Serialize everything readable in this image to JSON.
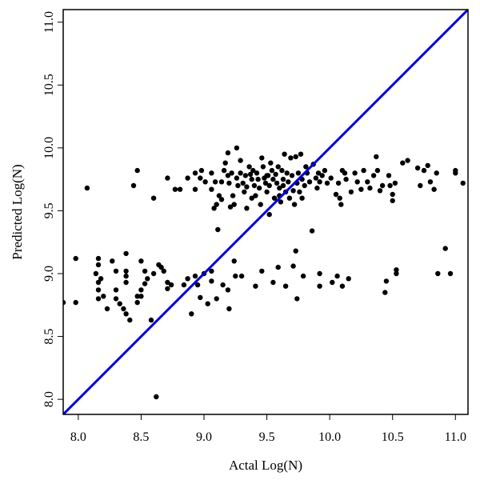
{
  "chart_data": {
    "type": "scatter",
    "title": "",
    "xlabel": "Actal Log(N)",
    "ylabel": "Predicted Log(N)",
    "xlim": [
      7.88,
      11.1
    ],
    "ylim": [
      7.88,
      11.1
    ],
    "x_ticks": [
      "8.0",
      "8.5",
      "9.0",
      "9.5",
      "10.0",
      "10.5",
      "11.0"
    ],
    "y_ticks": [
      "8.0",
      "8.5",
      "9.0",
      "9.5",
      "10.0",
      "10.5",
      "11.0"
    ],
    "grid": false,
    "legend": "none",
    "colors": {
      "points": "#000000",
      "line": "#0000dd",
      "frame": "#000000"
    },
    "reference_line": {
      "label": "",
      "from": [
        7.88,
        7.88
      ],
      "to": [
        11.1,
        11.1
      ]
    },
    "points": [
      [
        7.88,
        8.77
      ],
      [
        7.98,
        9.12
      ],
      [
        7.98,
        8.77
      ],
      [
        8.07,
        9.68
      ],
      [
        8.16,
        9.12
      ],
      [
        8.16,
        9.07
      ],
      [
        8.14,
        9.0
      ],
      [
        8.16,
        8.93
      ],
      [
        8.16,
        8.87
      ],
      [
        8.16,
        8.8
      ],
      [
        8.18,
        8.96
      ],
      [
        8.2,
        8.82
      ],
      [
        8.23,
        8.72
      ],
      [
        8.27,
        9.1
      ],
      [
        8.3,
        9.02
      ],
      [
        8.3,
        8.87
      ],
      [
        8.3,
        8.8
      ],
      [
        8.33,
        8.76
      ],
      [
        8.36,
        8.72
      ],
      [
        8.38,
        9.16
      ],
      [
        8.38,
        9.02
      ],
      [
        8.38,
        8.98
      ],
      [
        8.38,
        8.93
      ],
      [
        8.38,
        8.68
      ],
      [
        8.41,
        8.63
      ],
      [
        8.44,
        9.7
      ],
      [
        8.47,
        9.82
      ],
      [
        8.47,
        8.82
      ],
      [
        8.47,
        8.77
      ],
      [
        8.5,
        9.1
      ],
      [
        8.5,
        8.87
      ],
      [
        8.5,
        8.82
      ],
      [
        8.53,
        9.02
      ],
      [
        8.53,
        8.92
      ],
      [
        8.55,
        8.96
      ],
      [
        8.58,
        8.63
      ],
      [
        8.6,
        9.6
      ],
      [
        8.6,
        9.0
      ],
      [
        8.62,
        8.02
      ],
      [
        8.64,
        9.07
      ],
      [
        8.66,
        9.05
      ],
      [
        8.68,
        9.02
      ],
      [
        8.71,
        9.76
      ],
      [
        8.71,
        8.93
      ],
      [
        8.71,
        8.88
      ],
      [
        8.74,
        8.91
      ],
      [
        8.77,
        9.67
      ],
      [
        8.81,
        9.67
      ],
      [
        8.84,
        8.91
      ],
      [
        8.87,
        9.76
      ],
      [
        8.87,
        8.96
      ],
      [
        8.9,
        8.68
      ],
      [
        8.93,
        9.8
      ],
      [
        8.93,
        9.67
      ],
      [
        8.93,
        8.98
      ],
      [
        8.95,
        8.91
      ],
      [
        8.97,
        9.76
      ],
      [
        8.97,
        8.81
      ],
      [
        8.98,
        9.82
      ],
      [
        9.0,
        9.0
      ],
      [
        9.01,
        9.73
      ],
      [
        9.03,
        8.76
      ],
      [
        9.06,
        9.8
      ],
      [
        9.06,
        9.67
      ],
      [
        9.06,
        9.02
      ],
      [
        9.06,
        8.94
      ],
      [
        9.08,
        9.52
      ],
      [
        9.09,
        9.73
      ],
      [
        9.1,
        9.55
      ],
      [
        9.1,
        8.8
      ],
      [
        9.11,
        9.35
      ],
      [
        9.12,
        9.62
      ],
      [
        9.14,
        9.73
      ],
      [
        9.14,
        9.59
      ],
      [
        9.15,
        8.91
      ],
      [
        9.16,
        9.82
      ],
      [
        9.17,
        9.88
      ],
      [
        9.19,
        9.96
      ],
      [
        9.19,
        9.78
      ],
      [
        9.19,
        8.87
      ],
      [
        9.2,
        9.72
      ],
      [
        9.2,
        8.72
      ],
      [
        9.21,
        9.53
      ],
      [
        9.22,
        9.8
      ],
      [
        9.23,
        9.62
      ],
      [
        9.24,
        9.55
      ],
      [
        9.24,
        9.1
      ],
      [
        9.25,
        8.98
      ],
      [
        9.26,
        10.0
      ],
      [
        9.26,
        9.76
      ],
      [
        9.27,
        9.7
      ],
      [
        9.29,
        9.9
      ],
      [
        9.29,
        9.8
      ],
      [
        9.3,
        8.98
      ],
      [
        9.31,
        9.72
      ],
      [
        9.32,
        9.65
      ],
      [
        9.33,
        9.78
      ],
      [
        9.34,
        9.69
      ],
      [
        9.34,
        9.52
      ],
      [
        9.36,
        9.85
      ],
      [
        9.37,
        9.79
      ],
      [
        9.38,
        9.75
      ],
      [
        9.38,
        9.6
      ],
      [
        9.39,
        9.82
      ],
      [
        9.4,
        9.7
      ],
      [
        9.41,
        9.62
      ],
      [
        9.41,
        8.9
      ],
      [
        9.42,
        9.8
      ],
      [
        9.43,
        9.75
      ],
      [
        9.44,
        9.68
      ],
      [
        9.45,
        9.55
      ],
      [
        9.46,
        9.92
      ],
      [
        9.46,
        9.02
      ],
      [
        9.47,
        9.85
      ],
      [
        9.48,
        9.76
      ],
      [
        9.49,
        9.72
      ],
      [
        9.5,
        9.65
      ],
      [
        9.51,
        9.78
      ],
      [
        9.52,
        9.7
      ],
      [
        9.52,
        9.47
      ],
      [
        9.53,
        9.88
      ],
      [
        9.54,
        9.82
      ],
      [
        9.55,
        9.75
      ],
      [
        9.55,
        8.93
      ],
      [
        9.56,
        9.6
      ],
      [
        9.57,
        9.79
      ],
      [
        9.58,
        9.72
      ],
      [
        9.59,
        9.85
      ],
      [
        9.59,
        9.05
      ],
      [
        9.6,
        9.68
      ],
      [
        9.61,
        9.57
      ],
      [
        9.62,
        9.82
      ],
      [
        9.63,
        9.75
      ],
      [
        9.63,
        9.7
      ],
      [
        9.64,
        9.95
      ],
      [
        9.65,
        9.65
      ],
      [
        9.65,
        8.9
      ],
      [
        9.66,
        9.8
      ],
      [
        9.67,
        9.73
      ],
      [
        9.68,
        9.6
      ],
      [
        9.69,
        9.92
      ],
      [
        9.7,
        9.78
      ],
      [
        9.71,
        9.66
      ],
      [
        9.71,
        9.06
      ],
      [
        9.72,
        9.55
      ],
      [
        9.73,
        9.93
      ],
      [
        9.73,
        9.18
      ],
      [
        9.74,
        9.72
      ],
      [
        9.74,
        8.8
      ],
      [
        9.75,
        9.8
      ],
      [
        9.76,
        9.65
      ],
      [
        9.77,
        9.95
      ],
      [
        9.78,
        9.6
      ],
      [
        9.78,
        9.75
      ],
      [
        9.79,
        8.98
      ],
      [
        9.8,
        9.7
      ],
      [
        9.81,
        9.85
      ],
      [
        9.82,
        9.8
      ],
      [
        9.84,
        9.73
      ],
      [
        9.86,
        9.34
      ],
      [
        9.87,
        9.87
      ],
      [
        9.89,
        9.76
      ],
      [
        9.9,
        9.68
      ],
      [
        9.91,
        9.8
      ],
      [
        9.92,
        9.73
      ],
      [
        9.92,
        9.0
      ],
      [
        9.92,
        8.9
      ],
      [
        9.94,
        9.78
      ],
      [
        9.96,
        9.82
      ],
      [
        9.98,
        9.72
      ],
      [
        10.01,
        9.76
      ],
      [
        10.02,
        8.93
      ],
      [
        10.05,
        9.63
      ],
      [
        10.06,
        8.98
      ],
      [
        10.07,
        9.72
      ],
      [
        10.08,
        9.6
      ],
      [
        10.09,
        9.55
      ],
      [
        10.1,
        9.82
      ],
      [
        10.1,
        8.9
      ],
      [
        10.12,
        9.8
      ],
      [
        10.13,
        9.75
      ],
      [
        10.15,
        8.96
      ],
      [
        10.17,
        9.65
      ],
      [
        10.2,
        9.8
      ],
      [
        10.22,
        9.73
      ],
      [
        10.25,
        9.67
      ],
      [
        10.27,
        9.82
      ],
      [
        10.3,
        9.73
      ],
      [
        10.32,
        9.68
      ],
      [
        10.35,
        9.78
      ],
      [
        10.37,
        9.93
      ],
      [
        10.38,
        9.82
      ],
      [
        10.4,
        9.66
      ],
      [
        10.42,
        9.7
      ],
      [
        10.44,
        8.85
      ],
      [
        10.45,
        8.94
      ],
      [
        10.47,
        9.78
      ],
      [
        10.48,
        9.7
      ],
      [
        10.5,
        9.63
      ],
      [
        10.5,
        9.58
      ],
      [
        10.52,
        9.72
      ],
      [
        10.53,
        9.0
      ],
      [
        10.53,
        9.03
      ],
      [
        10.58,
        9.88
      ],
      [
        10.62,
        9.9
      ],
      [
        10.7,
        9.84
      ],
      [
        10.72,
        9.7
      ],
      [
        10.75,
        9.82
      ],
      [
        10.78,
        9.86
      ],
      [
        10.8,
        9.73
      ],
      [
        10.83,
        9.67
      ],
      [
        10.85,
        9.8
      ],
      [
        10.86,
        9.0
      ],
      [
        10.92,
        9.2
      ],
      [
        10.96,
        9.0
      ],
      [
        11.0,
        9.8
      ],
      [
        11.0,
        9.82
      ],
      [
        11.06,
        9.72
      ],
      [
        9.6,
        9.62
      ],
      [
        9.5,
        9.78
      ]
    ]
  }
}
